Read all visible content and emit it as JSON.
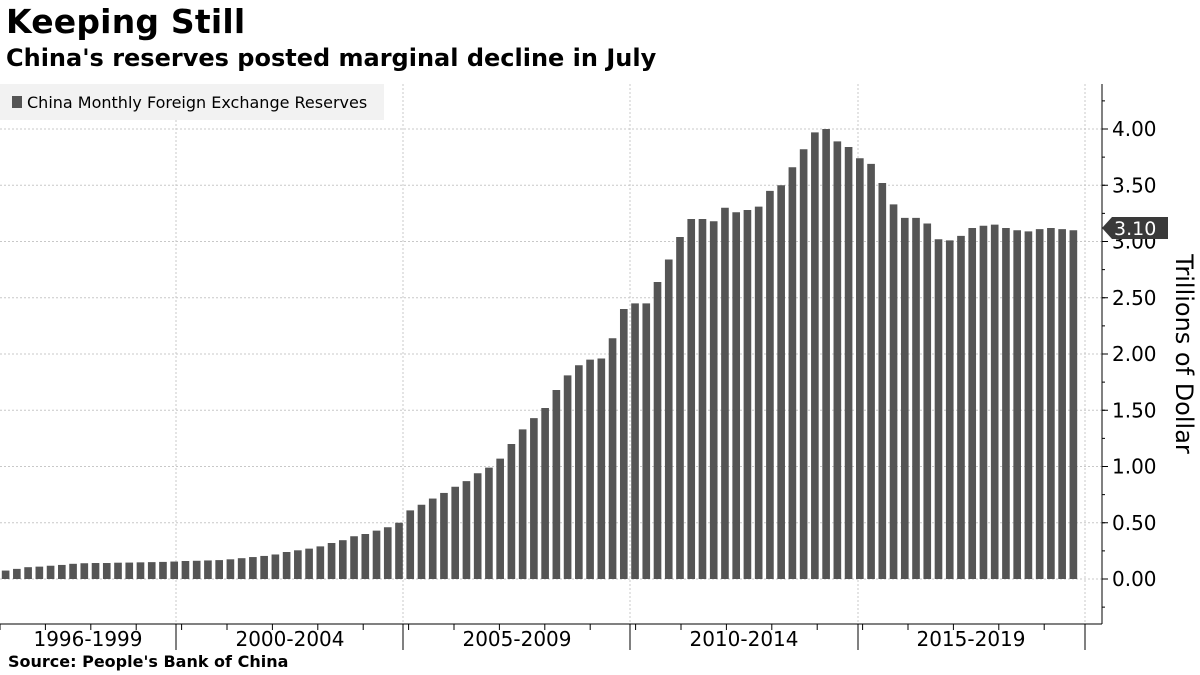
{
  "title": "Keeping Still",
  "subtitle": "China's reserves posted marginal decline in July",
  "source": "Source: People's Bank of China",
  "chart_data": {
    "type": "bar",
    "series": [
      {
        "name": "China Monthly Foreign Exchange Reserves",
        "color": "#555555",
        "values": [
          0.075,
          0.09,
          0.105,
          0.11,
          0.118,
          0.125,
          0.135,
          0.14,
          0.142,
          0.142,
          0.145,
          0.146,
          0.148,
          0.15,
          0.152,
          0.155,
          0.16,
          0.162,
          0.165,
          0.168,
          0.175,
          0.185,
          0.195,
          0.205,
          0.218,
          0.24,
          0.255,
          0.27,
          0.29,
          0.32,
          0.345,
          0.38,
          0.4,
          0.43,
          0.46,
          0.5,
          0.61,
          0.66,
          0.715,
          0.765,
          0.82,
          0.87,
          0.94,
          0.99,
          1.07,
          1.2,
          1.33,
          1.43,
          1.52,
          1.68,
          1.81,
          1.9,
          1.95,
          1.96,
          2.14,
          2.4,
          2.45,
          2.45,
          2.64,
          2.84,
          3.04,
          3.2,
          3.2,
          3.18,
          3.3,
          3.26,
          3.28,
          3.31,
          3.45,
          3.5,
          3.66,
          3.82,
          3.97,
          4.0,
          3.89,
          3.84,
          3.74,
          3.69,
          3.52,
          3.33,
          3.21,
          3.21,
          3.16,
          3.02,
          3.01,
          3.05,
          3.12,
          3.14,
          3.15,
          3.12,
          3.1,
          3.09,
          3.11,
          3.12,
          3.11,
          3.1
        ]
      }
    ],
    "x_labels": [
      "1996-1999",
      "2000-2004",
      "2005-2009",
      "2010-2014",
      "2015-2019"
    ],
    "ylabel": "Trillions of Dollar",
    "y_ticks": [
      "0.00",
      "0.50",
      "1.00",
      "1.50",
      "2.00",
      "2.50",
      "3.00",
      "3.50",
      "4.00"
    ],
    "ylim": [
      -0.4,
      4.4
    ],
    "last_value_label": "3.10",
    "legend_position": "top-left",
    "grid": true
  }
}
